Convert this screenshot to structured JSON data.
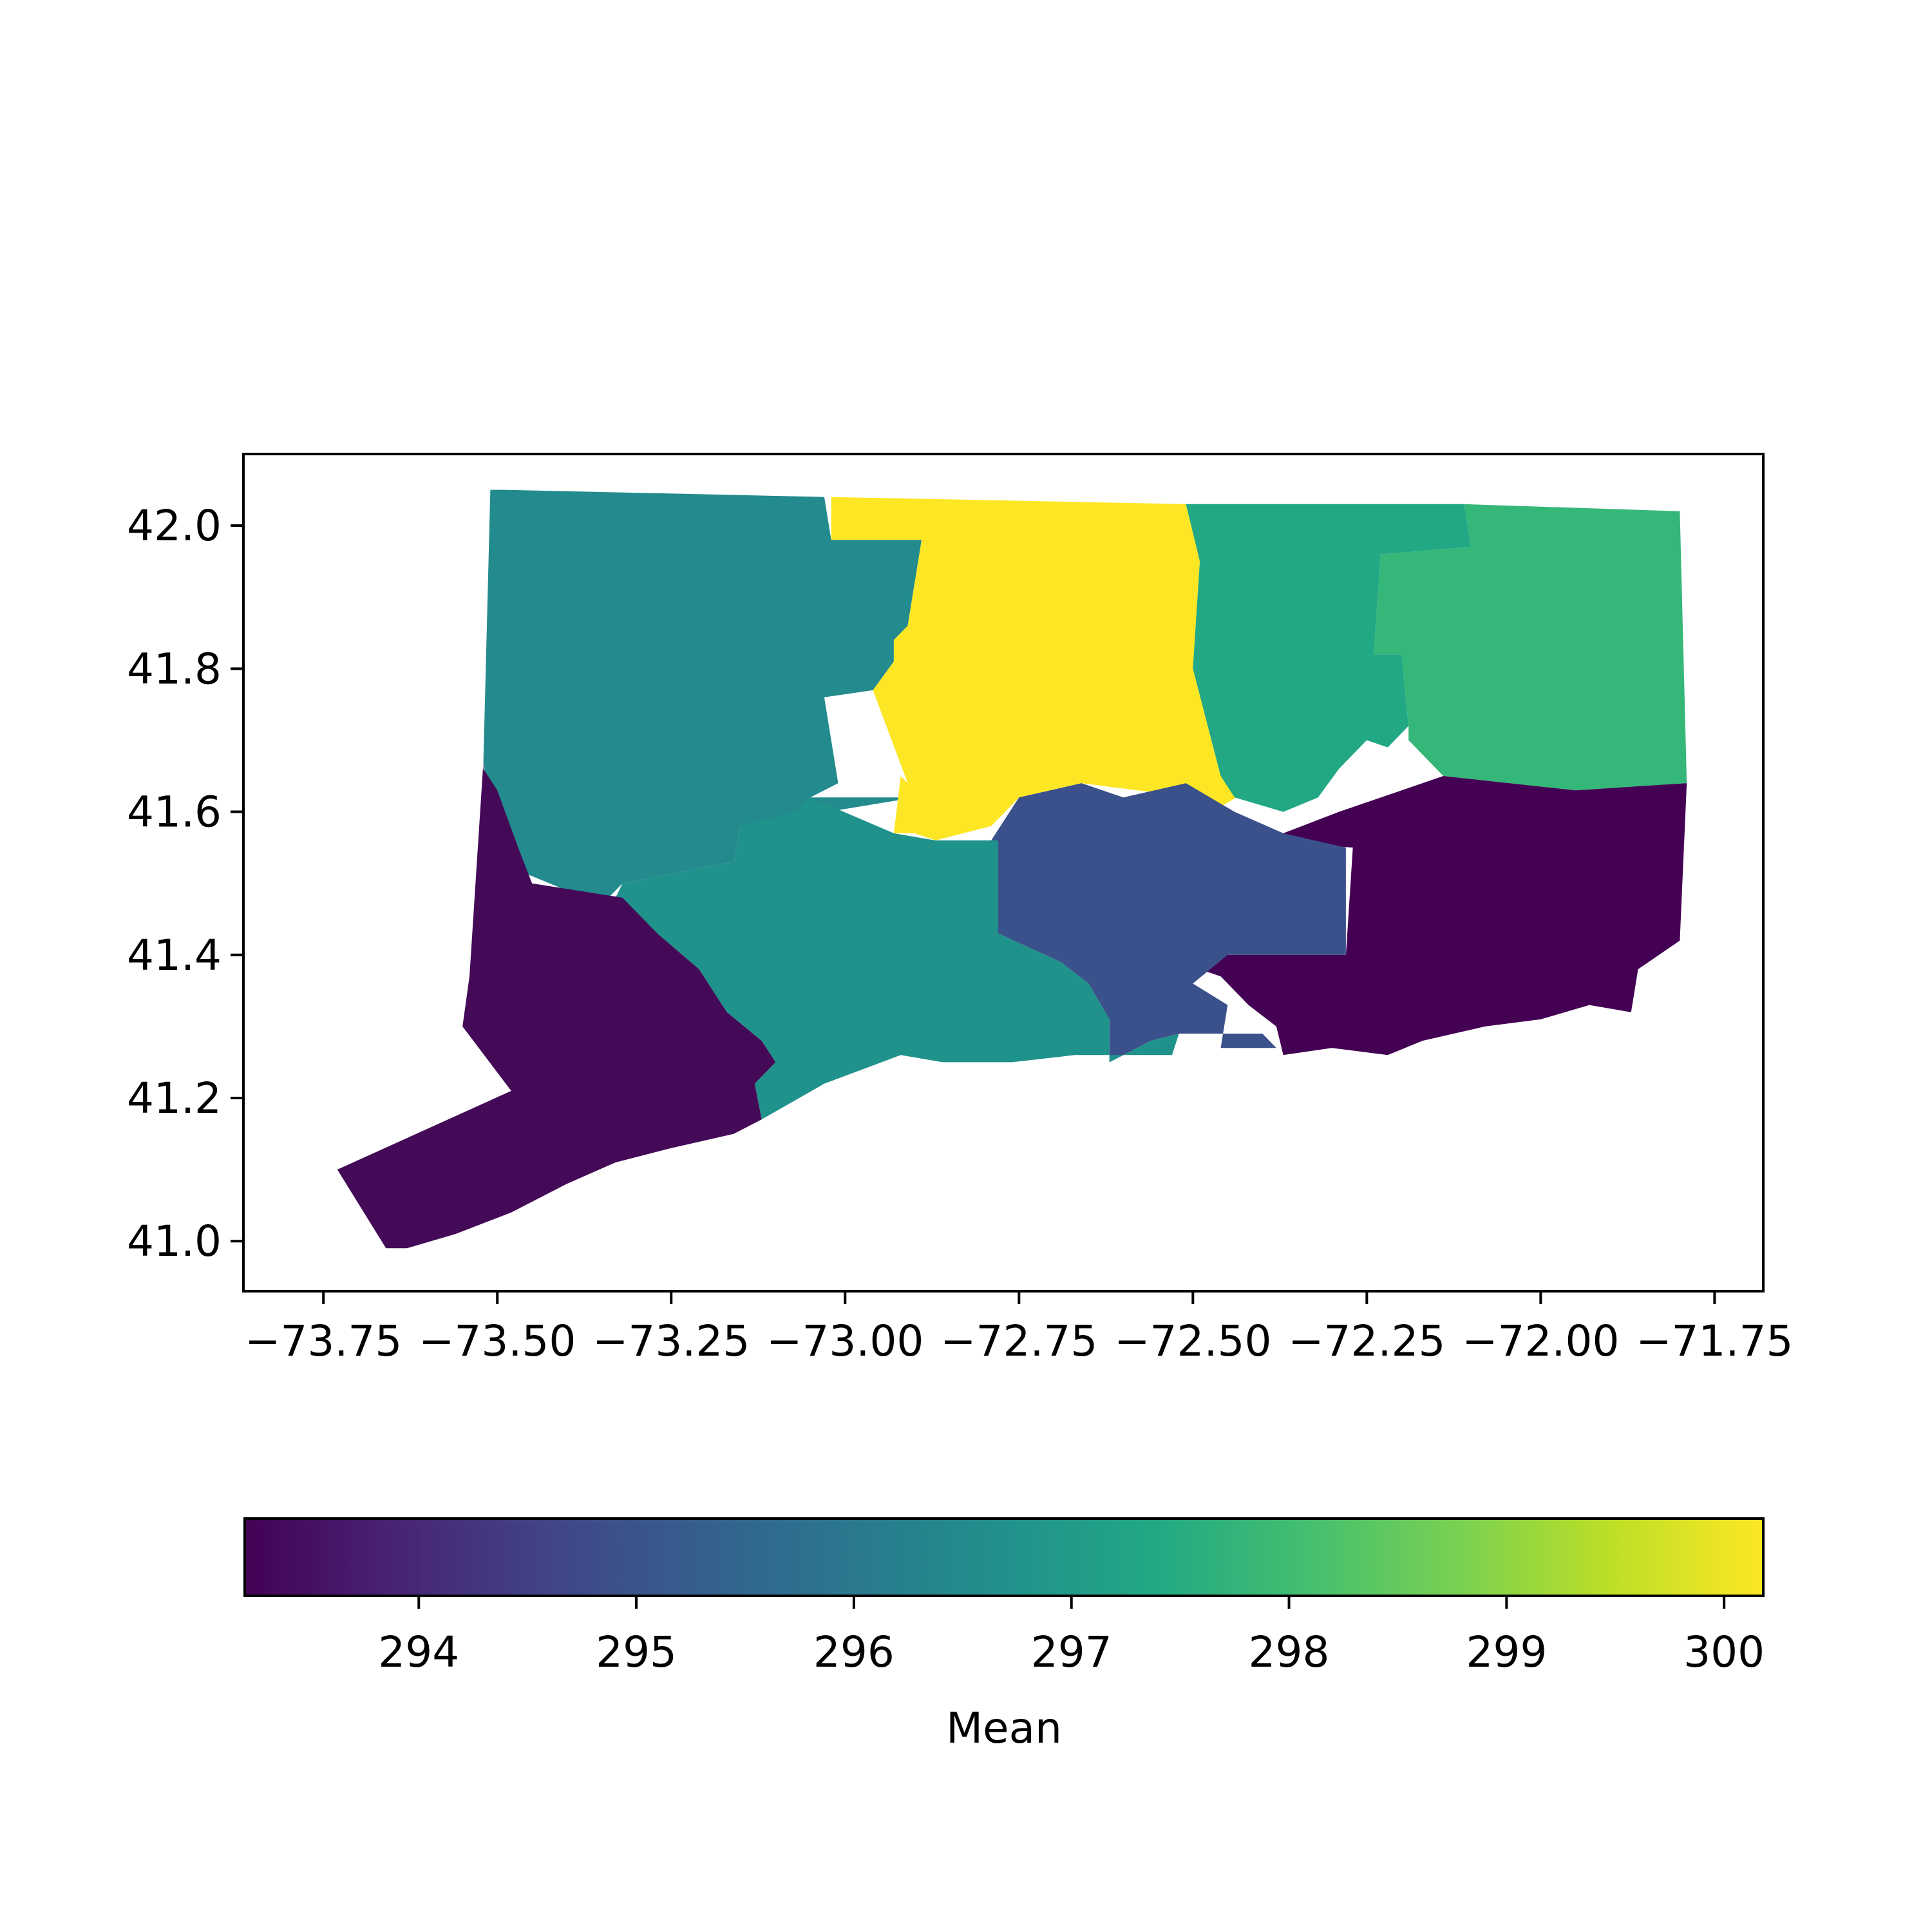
{
  "chart_data": {
    "type": "choropleth",
    "title": "",
    "xlabel": "",
    "ylabel": "",
    "xlim": [
      -73.865,
      -71.68
    ],
    "ylim": [
      40.93,
      42.1
    ],
    "x_ticks": [
      -73.75,
      -73.5,
      -73.25,
      -73.0,
      -72.75,
      -72.5,
      -72.25,
      -72.0,
      -71.75
    ],
    "x_tick_labels": [
      "−73.75",
      "−73.50",
      "−73.25",
      "−73.00",
      "−72.75",
      "−72.50",
      "−72.25",
      "−72.00",
      "−71.75"
    ],
    "y_ticks": [
      41.0,
      41.2,
      41.4,
      41.6,
      41.8,
      42.0
    ],
    "y_tick_labels": [
      "41.0",
      "41.2",
      "41.4",
      "41.6",
      "41.8",
      "42.0"
    ],
    "grid": false,
    "colormap": "viridis",
    "colorbar": {
      "orientation": "horizontal",
      "placement": "bottom",
      "label": "Mean",
      "vmin": 293.2,
      "vmax": 300.18,
      "ticks": [
        294,
        295,
        296,
        297,
        298,
        299,
        300
      ],
      "tick_labels": [
        "294",
        "295",
        "296",
        "297",
        "298",
        "299",
        "300"
      ]
    },
    "regions": [
      {
        "value": 296.5,
        "color": "#238a8d",
        "coords": [
          [
            -73.49,
            42.05
          ],
          [
            -73.03,
            42.04
          ],
          [
            -73.02,
            41.98
          ],
          [
            -72.89,
            41.98
          ],
          [
            -72.91,
            41.86
          ],
          [
            -72.93,
            41.84
          ],
          [
            -72.93,
            41.81
          ],
          [
            -72.96,
            41.77
          ],
          [
            -73.03,
            41.76
          ],
          [
            -73.01,
            41.64
          ],
          [
            -73.05,
            41.62
          ],
          [
            -72.9,
            41.62
          ],
          [
            -73.15,
            41.58
          ],
          [
            -73.16,
            41.53
          ],
          [
            -73.32,
            41.5
          ],
          [
            -73.35,
            41.47
          ],
          [
            -73.5,
            41.53
          ],
          [
            -73.52,
            41.67
          ],
          [
            -73.51,
            42.05
          ]
        ]
      },
      {
        "value": 300.1,
        "color": "#fde725",
        "coords": [
          [
            -73.02,
            42.04
          ],
          [
            -72.51,
            42.03
          ],
          [
            -72.49,
            41.95
          ],
          [
            -72.5,
            41.8
          ],
          [
            -72.46,
            41.65
          ],
          [
            -72.42,
            41.63
          ],
          [
            -72.49,
            41.59
          ],
          [
            -72.5,
            41.62
          ],
          [
            -72.66,
            41.64
          ],
          [
            -72.75,
            41.62
          ],
          [
            -72.79,
            41.58
          ],
          [
            -72.87,
            41.56
          ],
          [
            -72.9,
            41.57
          ],
          [
            -72.93,
            41.57
          ],
          [
            -72.92,
            41.65
          ],
          [
            -72.91,
            41.64
          ],
          [
            -72.96,
            41.77
          ],
          [
            -72.93,
            41.81
          ],
          [
            -72.93,
            41.84
          ],
          [
            -72.91,
            41.86
          ],
          [
            -72.89,
            41.98
          ],
          [
            -73.02,
            41.98
          ]
        ]
      },
      {
        "value": 297.4,
        "color": "#22a884",
        "coords": [
          [
            -72.51,
            42.03
          ],
          [
            -72.11,
            42.03
          ],
          [
            -72.1,
            41.97
          ],
          [
            -72.23,
            41.96
          ],
          [
            -72.24,
            41.82
          ],
          [
            -72.2,
            41.82
          ],
          [
            -72.19,
            41.72
          ],
          [
            -72.22,
            41.69
          ],
          [
            -72.25,
            41.7
          ],
          [
            -72.29,
            41.66
          ],
          [
            -72.32,
            41.62
          ],
          [
            -72.37,
            41.6
          ],
          [
            -72.44,
            41.62
          ],
          [
            -72.46,
            41.65
          ],
          [
            -72.5,
            41.8
          ],
          [
            -72.49,
            41.95
          ]
        ]
      },
      {
        "value": 297.9,
        "color": "#35b779",
        "coords": [
          [
            -72.11,
            42.03
          ],
          [
            -71.8,
            42.02
          ],
          [
            -71.79,
            41.64
          ],
          [
            -71.95,
            41.63
          ],
          [
            -72.14,
            41.65
          ],
          [
            -72.19,
            41.7
          ],
          [
            -72.19,
            41.72
          ],
          [
            -72.2,
            41.82
          ],
          [
            -72.24,
            41.82
          ],
          [
            -72.23,
            41.96
          ],
          [
            -72.1,
            41.97
          ]
        ]
      },
      {
        "value": 293.3,
        "color": "#440154",
        "coords": [
          [
            -72.42,
            41.58
          ],
          [
            -72.37,
            41.57
          ],
          [
            -72.29,
            41.6
          ],
          [
            -72.14,
            41.65
          ],
          [
            -71.95,
            41.63
          ],
          [
            -71.79,
            41.64
          ],
          [
            -71.8,
            41.42
          ],
          [
            -71.86,
            41.38
          ],
          [
            -71.87,
            41.32
          ],
          [
            -71.93,
            41.33
          ],
          [
            -72.0,
            41.31
          ],
          [
            -72.08,
            41.3
          ],
          [
            -72.17,
            41.28
          ],
          [
            -72.22,
            41.26
          ],
          [
            -72.3,
            41.27
          ],
          [
            -72.37,
            41.26
          ],
          [
            -72.38,
            41.3
          ],
          [
            -72.42,
            41.33
          ],
          [
            -72.46,
            41.37
          ],
          [
            -72.52,
            41.39
          ],
          [
            -72.45,
            41.4
          ],
          [
            -72.28,
            41.4
          ],
          [
            -72.27,
            41.55
          ],
          [
            -72.42,
            41.56
          ],
          [
            -72.45,
            41.58
          ]
        ]
      },
      {
        "value": 294.9,
        "color": "#3b518b",
        "coords": [
          [
            -72.51,
            41.64
          ],
          [
            -72.44,
            41.6
          ],
          [
            -72.37,
            41.57
          ],
          [
            -72.28,
            41.55
          ],
          [
            -72.28,
            41.4
          ],
          [
            -72.45,
            41.4
          ],
          [
            -72.5,
            41.36
          ],
          [
            -72.45,
            41.33
          ],
          [
            -72.46,
            41.27
          ],
          [
            -72.38,
            41.27
          ],
          [
            -72.4,
            41.29
          ],
          [
            -72.52,
            41.29
          ],
          [
            -72.56,
            41.28
          ],
          [
            -72.62,
            41.25
          ],
          [
            -72.62,
            41.31
          ],
          [
            -72.65,
            41.36
          ],
          [
            -72.69,
            41.39
          ],
          [
            -72.78,
            41.43
          ],
          [
            -72.79,
            41.56
          ],
          [
            -72.75,
            41.62
          ],
          [
            -72.66,
            41.64
          ],
          [
            -72.6,
            41.62
          ]
        ]
      },
      {
        "value": 296.9,
        "color": "#20928c",
        "coords": [
          [
            -72.78,
            41.56
          ],
          [
            -72.87,
            41.56
          ],
          [
            -72.93,
            41.57
          ],
          [
            -73.05,
            41.62
          ],
          [
            -73.07,
            41.6
          ],
          [
            -73.15,
            41.58
          ],
          [
            -73.16,
            41.53
          ],
          [
            -73.32,
            41.5
          ],
          [
            -73.33,
            41.48
          ],
          [
            -73.27,
            41.43
          ],
          [
            -73.21,
            41.38
          ],
          [
            -73.17,
            41.32
          ],
          [
            -73.12,
            41.28
          ],
          [
            -73.1,
            41.25
          ],
          [
            -73.13,
            41.22
          ],
          [
            -73.12,
            41.17
          ],
          [
            -73.03,
            41.22
          ],
          [
            -72.92,
            41.26
          ],
          [
            -72.86,
            41.25
          ],
          [
            -72.76,
            41.25
          ],
          [
            -72.67,
            41.26
          ],
          [
            -72.56,
            41.26
          ],
          [
            -72.53,
            41.26
          ],
          [
            -72.52,
            41.29
          ],
          [
            -72.56,
            41.28
          ],
          [
            -72.62,
            41.25
          ],
          [
            -72.62,
            41.31
          ],
          [
            -72.65,
            41.36
          ],
          [
            -72.69,
            41.39
          ],
          [
            -72.78,
            41.43
          ]
        ]
      },
      {
        "value": 293.5,
        "color": "#440a57",
        "coords": [
          [
            -73.52,
            41.66
          ],
          [
            -73.5,
            41.63
          ],
          [
            -73.47,
            41.55
          ],
          [
            -73.45,
            41.5
          ],
          [
            -73.32,
            41.48
          ],
          [
            -73.27,
            41.43
          ],
          [
            -73.21,
            41.38
          ],
          [
            -73.17,
            41.32
          ],
          [
            -73.12,
            41.28
          ],
          [
            -73.1,
            41.25
          ],
          [
            -73.13,
            41.22
          ],
          [
            -73.12,
            41.17
          ],
          [
            -73.16,
            41.15
          ],
          [
            -73.25,
            41.13
          ],
          [
            -73.33,
            41.11
          ],
          [
            -73.4,
            41.08
          ],
          [
            -73.48,
            41.04
          ],
          [
            -73.56,
            41.01
          ],
          [
            -73.63,
            40.99
          ],
          [
            -73.66,
            40.99
          ],
          [
            -73.73,
            41.1
          ],
          [
            -73.48,
            41.21
          ],
          [
            -73.55,
            41.3
          ],
          [
            -73.54,
            41.37
          ],
          [
            -73.52,
            41.67
          ]
        ]
      }
    ]
  }
}
